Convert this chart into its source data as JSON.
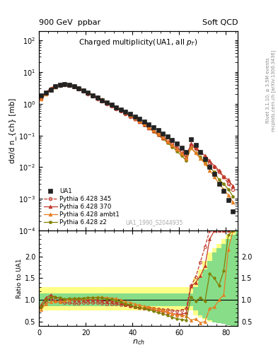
{
  "title_left": "900 GeV  ppbar",
  "title_right": "Soft QCD",
  "plot_title": "Charged multiplicity(UA1, all p_{T})",
  "xlabel": "n_{ch}",
  "ylabel_main": "dσ/d n_{ch} [mb]",
  "ylabel_ratio": "Ratio to UA1",
  "right_label_top": "Rivet 3.1.10, ≥ 3.5M events",
  "right_label_bottom": "mcplots.cern.ch [arXiv:1306.3436]",
  "watermark": "UA1_1990_S2044935",
  "xlim": [
    0,
    85
  ],
  "ylim_main": [
    0.0001,
    200
  ],
  "ylim_ratio": [
    0.4,
    2.6
  ],
  "ua1_x": [
    1,
    3,
    5,
    7,
    9,
    11,
    13,
    15,
    17,
    19,
    21,
    23,
    25,
    27,
    29,
    31,
    33,
    35,
    37,
    39,
    41,
    43,
    45,
    47,
    49,
    51,
    53,
    55,
    57,
    59,
    61,
    63,
    65,
    67,
    69,
    71,
    73,
    75,
    77,
    79,
    81,
    83
  ],
  "ua1_y": [
    1.8,
    2.2,
    2.8,
    3.5,
    4.0,
    4.2,
    4.0,
    3.6,
    3.1,
    2.6,
    2.2,
    1.85,
    1.55,
    1.3,
    1.1,
    0.92,
    0.78,
    0.66,
    0.56,
    0.47,
    0.4,
    0.33,
    0.27,
    0.22,
    0.18,
    0.145,
    0.115,
    0.092,
    0.073,
    0.057,
    0.042,
    0.03,
    0.075,
    0.05,
    0.03,
    0.018,
    0.01,
    0.006,
    0.003,
    0.0018,
    0.0009,
    0.0004
  ],
  "ua1_color": "#222222",
  "p345_x": [
    1,
    3,
    5,
    7,
    9,
    11,
    13,
    15,
    17,
    19,
    21,
    23,
    25,
    27,
    29,
    31,
    33,
    35,
    37,
    39,
    41,
    43,
    45,
    47,
    49,
    51,
    53,
    55,
    57,
    59,
    61,
    63,
    65,
    67,
    69,
    71,
    73,
    75,
    77,
    79,
    81,
    83
  ],
  "p345_y": [
    1.5,
    2.1,
    2.9,
    3.4,
    3.8,
    3.9,
    3.7,
    3.3,
    2.85,
    2.45,
    2.05,
    1.72,
    1.44,
    1.2,
    1.0,
    0.84,
    0.7,
    0.59,
    0.49,
    0.4,
    0.33,
    0.27,
    0.22,
    0.18,
    0.145,
    0.115,
    0.09,
    0.071,
    0.055,
    0.042,
    0.032,
    0.024,
    0.05,
    0.038,
    0.028,
    0.02,
    0.014,
    0.01,
    0.007,
    0.005,
    0.003,
    0.002
  ],
  "p345_color": "#c0392b",
  "p370_x": [
    1,
    3,
    5,
    7,
    9,
    11,
    13,
    15,
    17,
    19,
    21,
    23,
    25,
    27,
    29,
    31,
    33,
    35,
    37,
    39,
    41,
    43,
    45,
    47,
    49,
    51,
    53,
    55,
    57,
    59,
    61,
    63,
    65,
    67,
    69,
    71,
    73,
    75,
    77,
    79,
    81,
    83
  ],
  "p370_y": [
    1.6,
    2.3,
    3.1,
    3.7,
    4.1,
    4.2,
    4.0,
    3.6,
    3.1,
    2.6,
    2.2,
    1.85,
    1.55,
    1.28,
    1.07,
    0.89,
    0.74,
    0.61,
    0.5,
    0.41,
    0.33,
    0.27,
    0.22,
    0.175,
    0.138,
    0.108,
    0.084,
    0.065,
    0.05,
    0.038,
    0.028,
    0.021,
    0.055,
    0.042,
    0.031,
    0.023,
    0.016,
    0.011,
    0.008,
    0.005,
    0.004,
    0.0025
  ],
  "p370_color": "#c0392b",
  "pambt1_x": [
    1,
    3,
    5,
    7,
    9,
    11,
    13,
    15,
    17,
    19,
    21,
    23,
    25,
    27,
    29,
    31,
    33,
    35,
    37,
    39,
    41,
    43,
    45,
    47,
    49,
    51,
    53,
    55,
    57,
    59,
    61,
    63,
    65,
    67,
    69,
    71,
    73,
    75,
    77,
    79,
    81,
    83
  ],
  "pambt1_y": [
    1.4,
    2.0,
    2.7,
    3.4,
    3.85,
    4.1,
    4.0,
    3.7,
    3.2,
    2.7,
    2.3,
    1.95,
    1.65,
    1.38,
    1.15,
    0.96,
    0.8,
    0.66,
    0.54,
    0.44,
    0.36,
    0.29,
    0.23,
    0.185,
    0.145,
    0.113,
    0.087,
    0.066,
    0.05,
    0.037,
    0.027,
    0.019,
    0.04,
    0.028,
    0.019,
    0.013,
    0.008,
    0.005,
    0.003,
    0.002,
    0.0013,
    0.0008
  ],
  "pambt1_color": "#e67e22",
  "pz2_x": [
    1,
    3,
    5,
    7,
    9,
    11,
    13,
    15,
    17,
    19,
    21,
    23,
    25,
    27,
    29,
    31,
    33,
    35,
    37,
    39,
    41,
    43,
    45,
    47,
    49,
    51,
    53,
    55,
    57,
    59,
    61,
    63,
    65,
    67,
    69,
    71,
    73,
    75,
    77,
    79,
    81,
    83
  ],
  "pz2_y": [
    1.5,
    2.2,
    3.0,
    3.7,
    4.2,
    4.3,
    4.1,
    3.7,
    3.2,
    2.7,
    2.3,
    1.95,
    1.63,
    1.36,
    1.12,
    0.93,
    0.77,
    0.63,
    0.51,
    0.42,
    0.33,
    0.27,
    0.215,
    0.17,
    0.133,
    0.102,
    0.078,
    0.059,
    0.044,
    0.032,
    0.023,
    0.016,
    0.04,
    0.029,
    0.021,
    0.014,
    0.01,
    0.007,
    0.004,
    0.003,
    0.002,
    0.0012
  ],
  "pz2_color": "#808000",
  "ratio_345_x": [
    1,
    3,
    5,
    7,
    9,
    11,
    13,
    15,
    17,
    19,
    21,
    23,
    25,
    27,
    29,
    31,
    33,
    35,
    37,
    39,
    41,
    43,
    45,
    47,
    49,
    51,
    53,
    55,
    57,
    59,
    61,
    63,
    65,
    67,
    69,
    71,
    73,
    75,
    77,
    79,
    81,
    83
  ],
  "ratio_345_y": [
    0.83,
    0.95,
    1.04,
    0.97,
    0.95,
    0.93,
    0.93,
    0.92,
    0.92,
    0.94,
    0.93,
    0.93,
    0.93,
    0.92,
    0.91,
    0.91,
    0.9,
    0.89,
    0.88,
    0.85,
    0.83,
    0.82,
    0.81,
    0.82,
    0.81,
    0.79,
    0.78,
    0.77,
    0.75,
    0.74,
    0.76,
    0.8,
    1.33,
    1.52,
    1.87,
    2.22,
    2.6,
    2.6,
    2.6,
    2.6,
    2.6,
    2.6
  ],
  "ratio_370_x": [
    1,
    3,
    5,
    7,
    9,
    11,
    13,
    15,
    17,
    19,
    21,
    23,
    25,
    27,
    29,
    31,
    33,
    35,
    37,
    39,
    41,
    43,
    45,
    47,
    49,
    51,
    53,
    55,
    57,
    59,
    61,
    63,
    65,
    67,
    69,
    71,
    73,
    75,
    77,
    79,
    81,
    83
  ],
  "ratio_370_y": [
    0.89,
    1.05,
    1.11,
    1.06,
    1.03,
    1.0,
    1.0,
    1.0,
    1.0,
    1.0,
    1.0,
    1.0,
    1.0,
    0.98,
    0.97,
    0.97,
    0.95,
    0.92,
    0.89,
    0.87,
    0.83,
    0.82,
    0.81,
    0.8,
    0.77,
    0.74,
    0.73,
    0.71,
    0.68,
    0.67,
    0.67,
    0.7,
    1.31,
    1.4,
    1.55,
    1.78,
    2.4,
    2.6,
    2.6,
    2.6,
    2.6,
    2.6
  ],
  "ratio_ambt1_x": [
    1,
    3,
    5,
    7,
    9,
    11,
    13,
    15,
    17,
    19,
    21,
    23,
    25,
    27,
    29,
    31,
    33,
    35,
    37,
    39,
    41,
    43,
    45,
    47,
    49,
    51,
    53,
    55,
    57,
    59,
    61,
    63,
    65,
    67,
    69,
    71,
    73,
    75,
    77,
    79,
    81,
    83
  ],
  "ratio_ambt1_y": [
    0.78,
    0.91,
    0.96,
    0.97,
    0.96,
    0.98,
    1.0,
    1.03,
    1.03,
    1.04,
    1.05,
    1.05,
    1.06,
    1.06,
    1.05,
    1.04,
    1.03,
    1.0,
    0.96,
    0.94,
    0.9,
    0.88,
    0.85,
    0.84,
    0.81,
    0.78,
    0.76,
    0.72,
    0.68,
    0.65,
    0.64,
    0.63,
    0.53,
    0.56,
    0.47,
    0.5,
    0.8,
    0.83,
    1.0,
    1.11,
    2.17,
    2.6
  ],
  "ratio_z2_x": [
    1,
    3,
    5,
    7,
    9,
    11,
    13,
    15,
    17,
    19,
    21,
    23,
    25,
    27,
    29,
    31,
    33,
    35,
    37,
    39,
    41,
    43,
    45,
    47,
    49,
    51,
    53,
    55,
    57,
    59,
    61,
    63,
    65,
    67,
    69,
    71,
    73,
    75,
    77,
    79,
    81,
    83
  ],
  "ratio_z2_y": [
    0.83,
    1.0,
    1.07,
    1.06,
    1.05,
    1.02,
    1.03,
    1.03,
    1.03,
    1.04,
    1.05,
    1.05,
    1.05,
    1.05,
    1.02,
    1.01,
    0.99,
    0.95,
    0.91,
    0.89,
    0.83,
    0.82,
    0.8,
    0.77,
    0.74,
    0.7,
    0.68,
    0.64,
    0.6,
    0.56,
    0.55,
    0.53,
    1.07,
    0.97,
    1.05,
    0.97,
    1.6,
    1.5,
    1.33,
    1.67,
    2.5,
    2.6
  ],
  "legend_labels": [
    "UA1",
    "Pythia 6.428 345",
    "Pythia 6.428 370",
    "Pythia 6.428 ambt1",
    "Pythia 6.428 z2"
  ],
  "yellow_band_steps_x": [
    0,
    64,
    66,
    68,
    70,
    72,
    74,
    76,
    78,
    80,
    82,
    84,
    86
  ],
  "yellow_band_hi": [
    1.3,
    1.3,
    1.5,
    1.7,
    1.9,
    2.1,
    2.2,
    2.3,
    2.4,
    2.5,
    2.6,
    2.6,
    2.6
  ],
  "yellow_band_lo": [
    0.75,
    0.75,
    0.65,
    0.6,
    0.55,
    0.5,
    0.48,
    0.46,
    0.44,
    0.42,
    0.4,
    0.4,
    0.4
  ],
  "green_band_steps_x": [
    0,
    64,
    66,
    68,
    70,
    72,
    74,
    76,
    78,
    80,
    82,
    84,
    86
  ],
  "green_band_hi": [
    1.15,
    1.15,
    1.3,
    1.5,
    1.7,
    1.9,
    2.1,
    2.2,
    2.3,
    2.4,
    2.5,
    2.6,
    2.6
  ],
  "green_band_lo": [
    0.85,
    0.85,
    0.75,
    0.65,
    0.58,
    0.52,
    0.48,
    0.46,
    0.44,
    0.42,
    0.4,
    0.4,
    0.4
  ]
}
